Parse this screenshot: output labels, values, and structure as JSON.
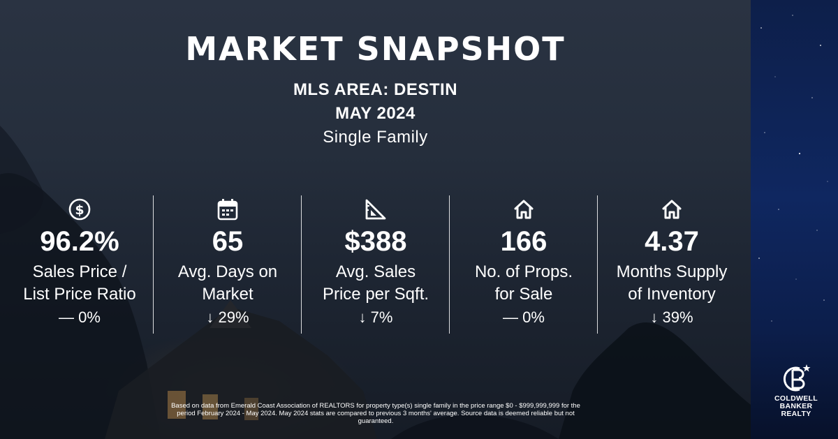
{
  "header": {
    "title": "MARKET SNAPSHOT",
    "area": "MLS AREA: DESTIN",
    "period": "MAY 2024",
    "property_type": "Single Family"
  },
  "stats": [
    {
      "icon": "dollar-circle-icon",
      "value": "96.2%",
      "label_line1": "Sales Price /",
      "label_line2": "List Price Ratio",
      "change_symbol": "—",
      "change": "0%"
    },
    {
      "icon": "calendar-icon",
      "value": "65",
      "label_line1": "Avg. Days on",
      "label_line2": "Market",
      "change_symbol": "↓",
      "change": "29%"
    },
    {
      "icon": "ruler-triangle-icon",
      "value": "$388",
      "label_line1": "Avg. Sales",
      "label_line2": "Price per Sqft.",
      "change_symbol": "↓",
      "change": "7%"
    },
    {
      "icon": "house-icon",
      "value": "166",
      "label_line1": "No. of Props.",
      "label_line2": "for Sale",
      "change_symbol": "—",
      "change": "0%"
    },
    {
      "icon": "house-icon",
      "value": "4.37",
      "label_line1": "Months Supply",
      "label_line2": "of Inventory",
      "change_symbol": "↓",
      "change": "39%"
    }
  ],
  "footnote": "Based on data from Emerald Coast Association of REALTORS for property type(s) single family in the price range $0 - $999,999,999 for the period February 2024 - May 2024. May 2024 stats are compared to previous 3 months' average. Source data is deemed reliable but not guaranteed.",
  "logo": {
    "line1": "COLDWELL",
    "line2": "BANKER",
    "line3": "REALTY"
  },
  "colors": {
    "side_panel": "#0f2760",
    "background": "#252e3c",
    "text": "#ffffff"
  }
}
